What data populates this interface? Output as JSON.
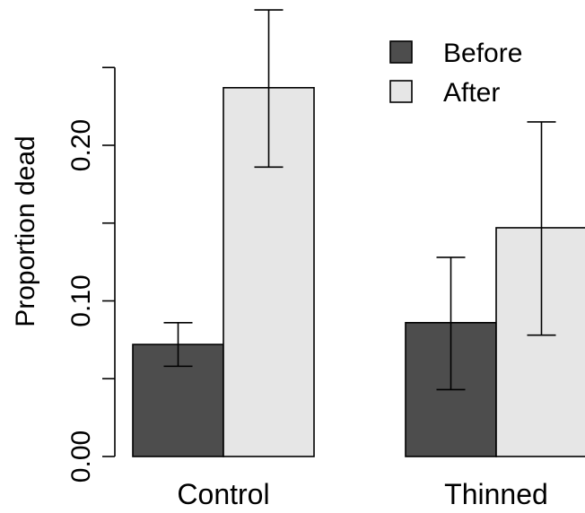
{
  "chart_data": {
    "type": "bar",
    "categories": [
      "Control",
      "Thinned"
    ],
    "series": [
      {
        "name": "Before",
        "color": "#4d4d4d",
        "values": [
          0.072,
          0.086
        ],
        "error_low": [
          0.058,
          0.043
        ],
        "error_high": [
          0.086,
          0.128
        ]
      },
      {
        "name": "After",
        "color": "#e6e6e6",
        "values": [
          0.237,
          0.147
        ],
        "error_low": [
          0.186,
          0.078
        ],
        "error_high": [
          0.287,
          0.215
        ]
      }
    ],
    "ylabel": "Proportion dead",
    "xlabel": "",
    "ylim": [
      0,
      0.25
    ],
    "yticks": [
      0,
      0.05,
      0.1,
      0.15,
      0.2,
      0.25
    ],
    "ytick_labels": [
      "0.00",
      "",
      "0.10",
      "",
      "0.20",
      ""
    ],
    "legend": {
      "position": "top-right"
    },
    "grid": false
  }
}
